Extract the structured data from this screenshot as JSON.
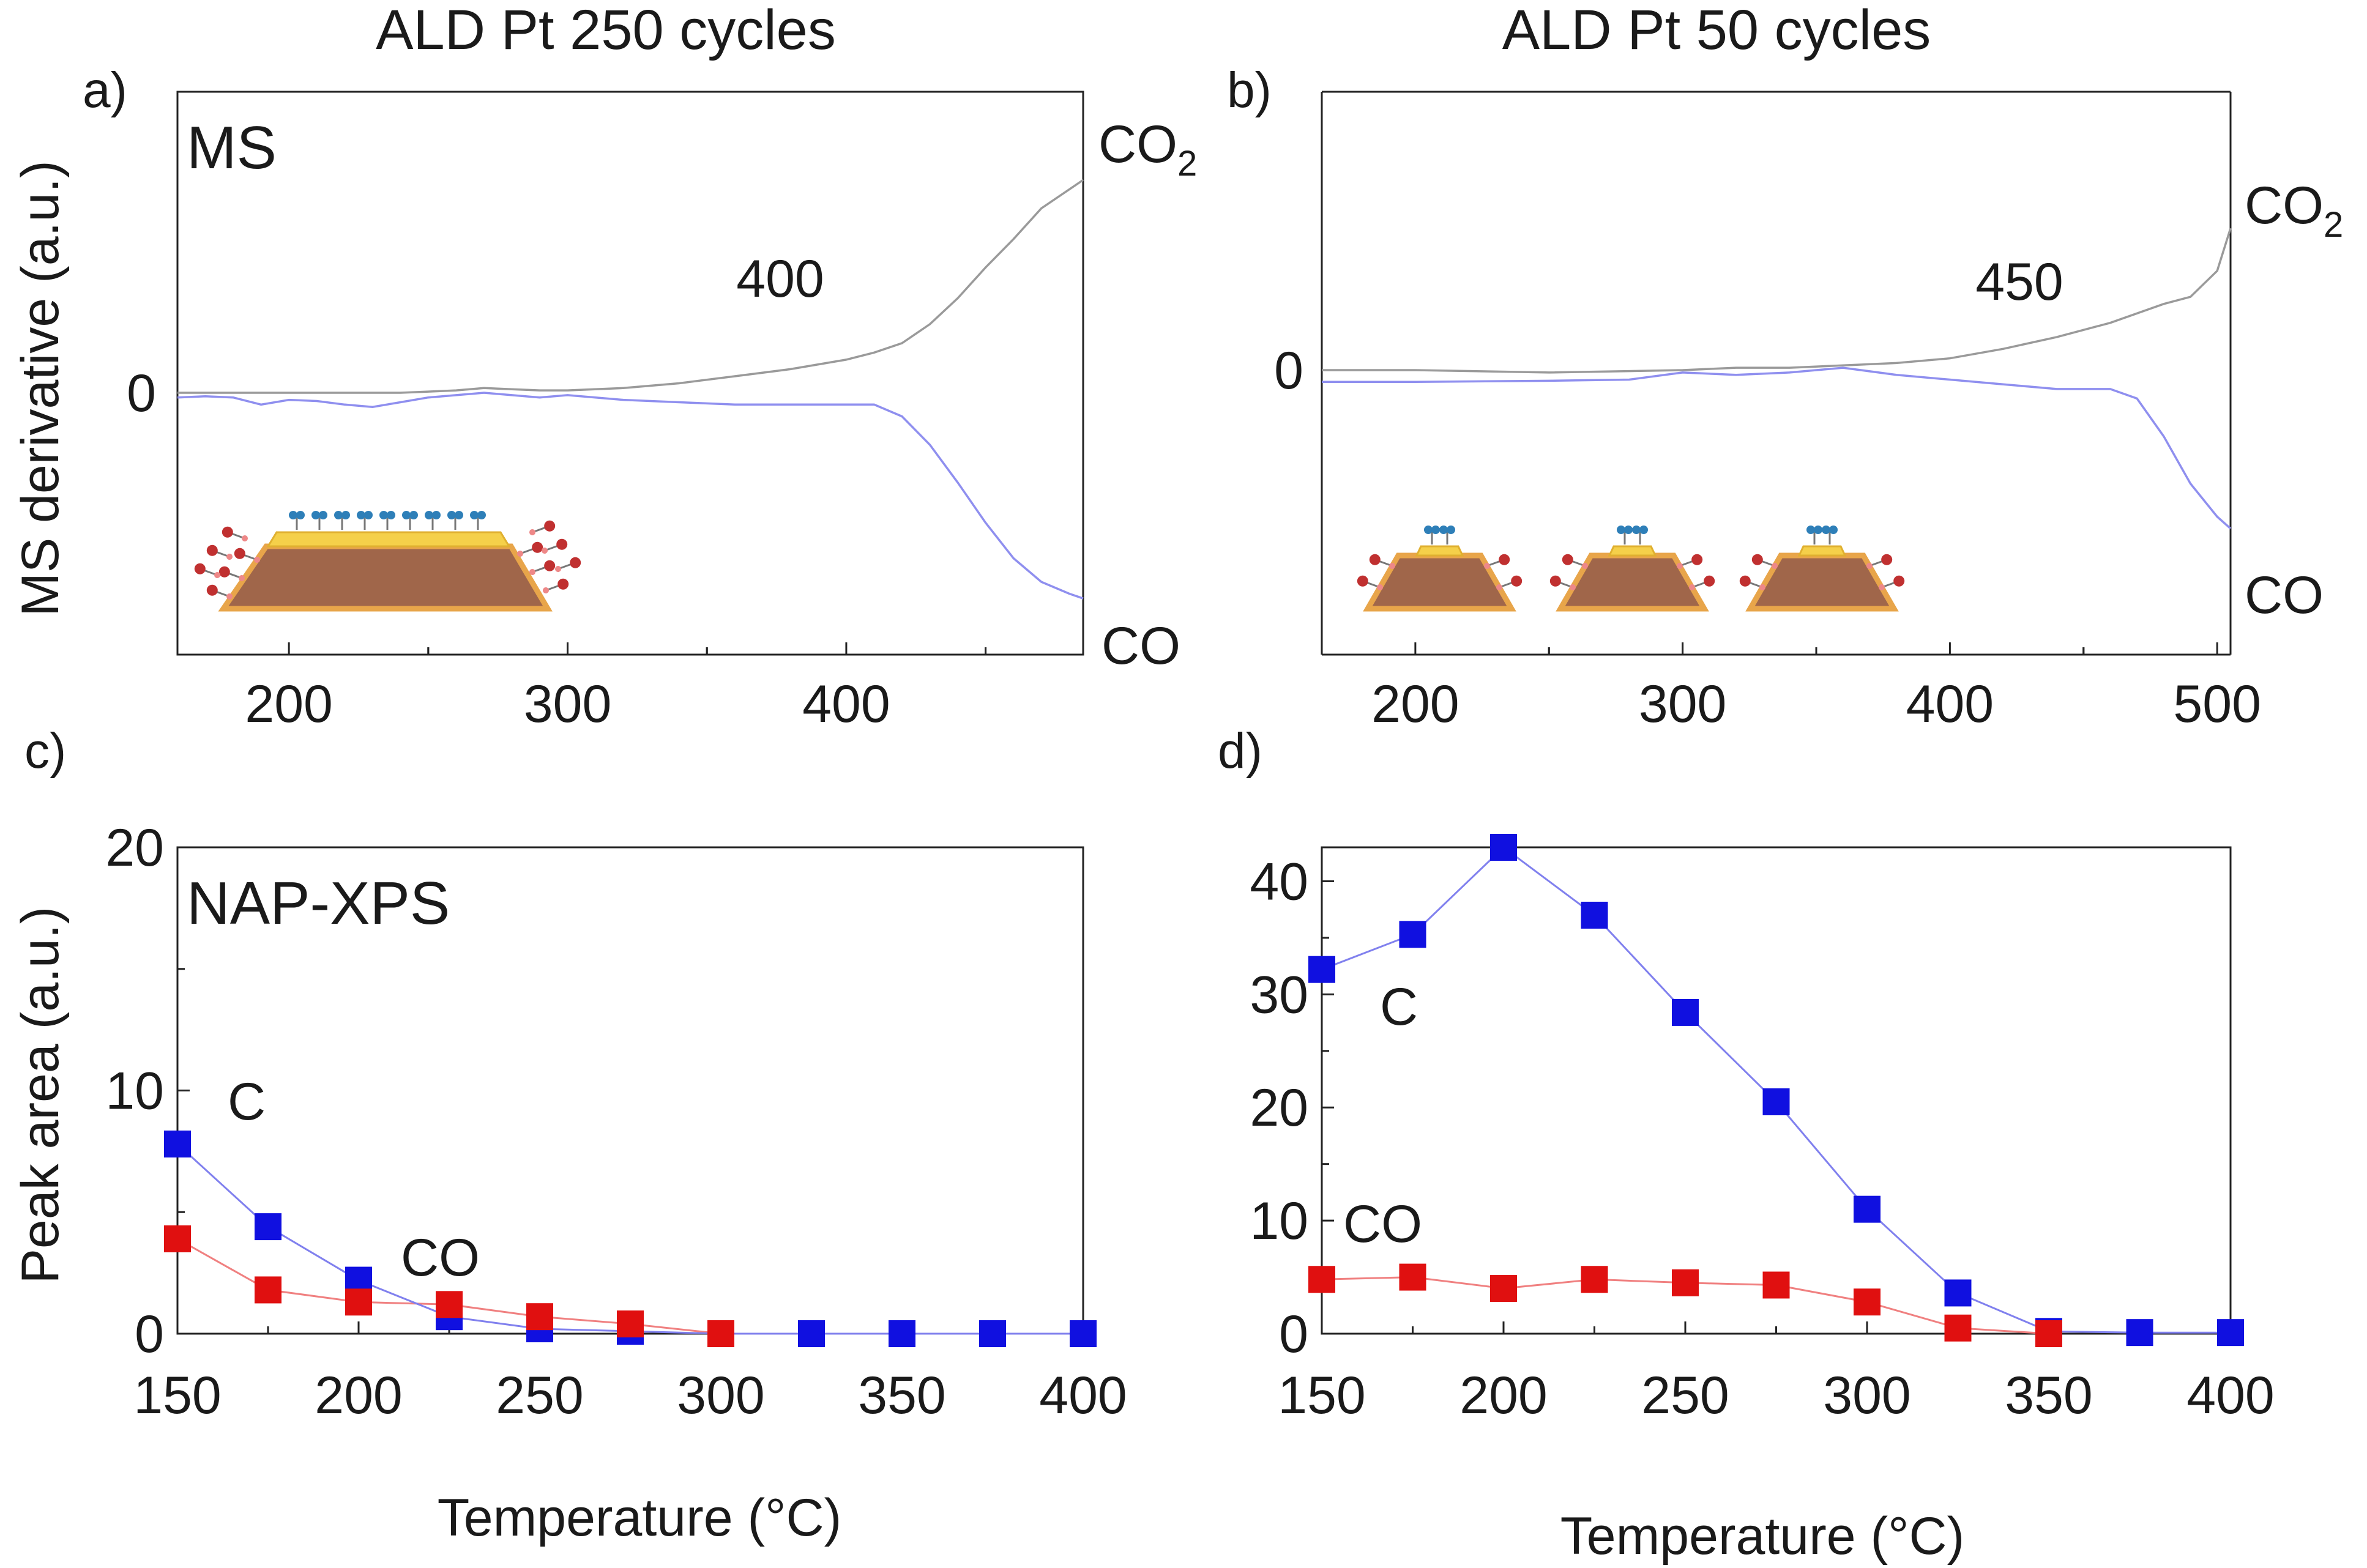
{
  "figure": {
    "title_a": "ALD Pt 250 cycles",
    "title_b": "ALD Pt 50 cycles",
    "panel_a": "a)",
    "panel_b": "b)",
    "panel_c": "c)",
    "panel_d": "d)",
    "ms_tag": "MS",
    "xps_tag": "NAP-XPS",
    "ylabel_top": "MS derivative (a.u.)",
    "ylabel_bottom": "Peak area (a.u.)",
    "xlabel_c": "Temperature (°C)",
    "xlabel_d": "Temperature (°C)",
    "co2_main": "CO",
    "co2_sub": "2",
    "co_label": "CO",
    "c_label": "C",
    "co_xps_label": "CO",
    "zero_label": "0",
    "annot_a": "400",
    "annot_b": "450"
  },
  "colors": {
    "co2_line": "#9a9a9a",
    "co_ms_line": "#8f8fef",
    "carbon": "#1010e0",
    "co_xps": "#e01010",
    "carbon_line": "#8080ee",
    "co_xps_line": "#f08080",
    "substrate": "#a0664a",
    "substrate_edge": "#e8a54a",
    "pt_layer": "#f5d04a",
    "co_molecule_blue": "#2e7fb8",
    "co_molecule_red": "#c03030"
  },
  "chart_data": [
    {
      "id": "a",
      "type": "line",
      "title": "ALD Pt 250 cycles",
      "ylabel": "MS derivative (a.u.)",
      "xlim": [
        160,
        485
      ],
      "ylim": [
        -0.95,
        0.95
      ],
      "xticks": [
        200,
        300,
        400
      ],
      "yticks": [
        0
      ],
      "annotation": "400",
      "series": [
        {
          "name": "CO2",
          "x": [
            160,
            180,
            200,
            220,
            240,
            250,
            260,
            270,
            280,
            290,
            300,
            320,
            340,
            360,
            380,
            400,
            410,
            420,
            430,
            440,
            450,
            460,
            470,
            480,
            485
          ],
          "y": [
            0,
            0,
            0,
            0,
            0,
            0.005,
            0.01,
            0.02,
            0.015,
            0.01,
            0.01,
            0.02,
            0.04,
            0.07,
            0.1,
            0.14,
            0.17,
            0.21,
            0.29,
            0.4,
            0.53,
            0.65,
            0.78,
            0.86,
            0.9
          ]
        },
        {
          "name": "CO",
          "x": [
            160,
            170,
            180,
            190,
            200,
            210,
            220,
            230,
            240,
            250,
            260,
            270,
            280,
            290,
            300,
            320,
            340,
            360,
            380,
            400,
            410,
            420,
            430,
            440,
            450,
            460,
            470,
            480,
            485
          ],
          "y": [
            -0.02,
            -0.015,
            -0.02,
            -0.05,
            -0.03,
            -0.035,
            -0.05,
            -0.06,
            -0.04,
            -0.02,
            -0.01,
            0,
            -0.01,
            -0.02,
            -0.01,
            -0.03,
            -0.04,
            -0.05,
            -0.05,
            -0.05,
            -0.05,
            -0.1,
            -0.22,
            -0.38,
            -0.55,
            -0.7,
            -0.8,
            -0.85,
            -0.87
          ]
        }
      ]
    },
    {
      "id": "b",
      "type": "line",
      "title": "ALD Pt 50 cycles",
      "xlim": [
        165,
        505
      ],
      "ylim": [
        -0.95,
        0.95
      ],
      "xticks": [
        200,
        300,
        400,
        500
      ],
      "yticks": [
        0
      ],
      "annotation": "450",
      "series": [
        {
          "name": "CO2",
          "x": [
            165,
            200,
            250,
            300,
            320,
            340,
            360,
            380,
            400,
            420,
            440,
            460,
            480,
            490,
            500,
            505
          ],
          "y": [
            0,
            0,
            -0.01,
            0,
            0.01,
            0.01,
            0.02,
            0.03,
            0.05,
            0.09,
            0.14,
            0.2,
            0.28,
            0.31,
            0.42,
            0.6
          ]
        },
        {
          "name": "CO",
          "x": [
            165,
            200,
            250,
            280,
            300,
            320,
            340,
            360,
            380,
            400,
            420,
            440,
            460,
            470,
            480,
            490,
            500,
            505
          ],
          "y": [
            -0.05,
            -0.05,
            -0.045,
            -0.04,
            -0.01,
            -0.02,
            -0.01,
            0.01,
            -0.02,
            -0.04,
            -0.06,
            -0.08,
            -0.08,
            -0.12,
            -0.28,
            -0.48,
            -0.62,
            -0.67
          ]
        }
      ]
    },
    {
      "id": "c",
      "type": "line",
      "title": "NAP-XPS",
      "xlabel": "Temperature (°C)",
      "ylabel": "Peak area (a.u.)",
      "xlim": [
        150,
        400
      ],
      "ylim": [
        0,
        20
      ],
      "xticks": [
        150,
        200,
        250,
        300,
        350,
        400
      ],
      "yticks": [
        0,
        10,
        20
      ],
      "series": [
        {
          "name": "C",
          "x": [
            150,
            175,
            200,
            225,
            250,
            275,
            300,
            325,
            350,
            375,
            400
          ],
          "y": [
            7.8,
            4.4,
            2.2,
            0.7,
            0.2,
            0.1,
            0,
            0,
            0,
            0,
            0
          ]
        },
        {
          "name": "CO",
          "x": [
            150,
            175,
            200,
            225,
            250,
            275,
            300
          ],
          "y": [
            3.9,
            1.8,
            1.3,
            1.2,
            0.7,
            0.4,
            0
          ]
        }
      ]
    },
    {
      "id": "d",
      "type": "line",
      "xlabel": "Temperature (°C)",
      "xlim": [
        150,
        400
      ],
      "ylim": [
        0,
        43
      ],
      "xticks": [
        150,
        200,
        250,
        300,
        350,
        400
      ],
      "yticks": [
        0,
        10,
        20,
        30,
        40
      ],
      "series": [
        {
          "name": "C",
          "x": [
            150,
            175,
            200,
            225,
            250,
            275,
            300,
            325,
            350,
            375,
            400
          ],
          "y": [
            32.2,
            35.3,
            43,
            37,
            28.4,
            20.5,
            11,
            3.6,
            0.2,
            0.1,
            0.1
          ]
        },
        {
          "name": "CO",
          "x": [
            150,
            175,
            200,
            225,
            250,
            275,
            300,
            325,
            350
          ],
          "y": [
            4.8,
            5.0,
            4.0,
            4.8,
            4.5,
            4.3,
            2.8,
            0.5,
            0
          ]
        }
      ]
    }
  ]
}
